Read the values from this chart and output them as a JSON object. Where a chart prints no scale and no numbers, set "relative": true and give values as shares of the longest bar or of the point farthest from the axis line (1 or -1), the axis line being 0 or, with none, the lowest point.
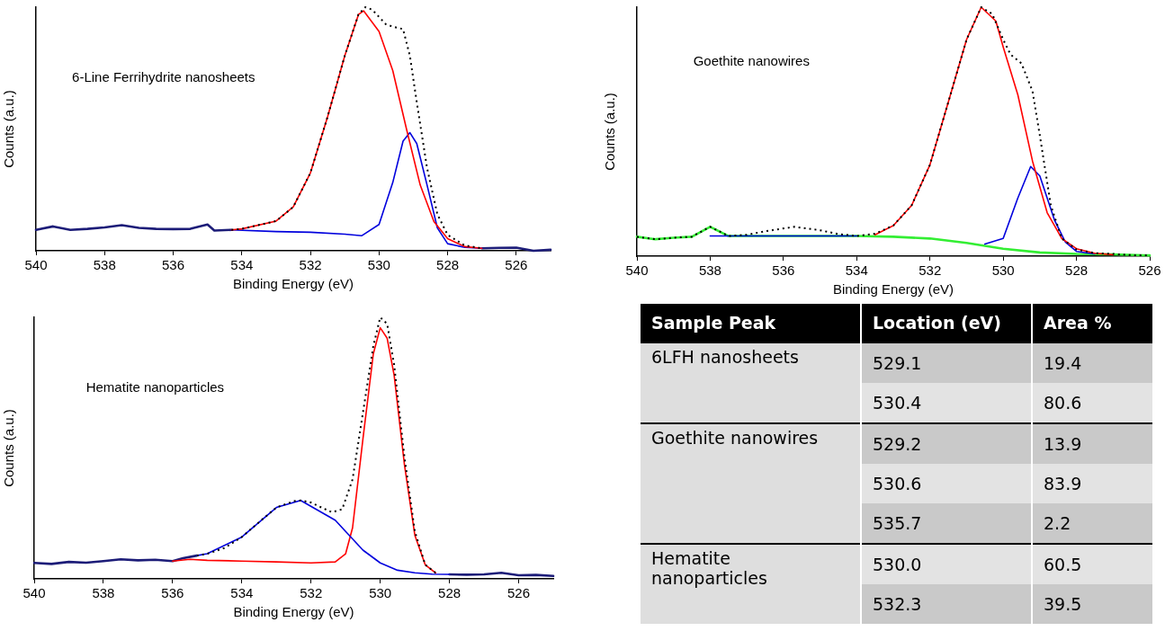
{
  "chart_data": [
    {
      "type": "line",
      "title": "6-Line Ferrihydrite nanosheets",
      "xlabel": "Binding Energy (eV)",
      "ylabel": "Counts (a.u.)",
      "relative": true,
      "xlim": [
        540,
        525
      ],
      "xticks": [
        540,
        538,
        536,
        534,
        532,
        530,
        528,
        526
      ],
      "tick_labels": "x",
      "grid": false,
      "legend": false,
      "marker": "none",
      "series": [
        {
          "color": "#1c1c78",
          "line_style": "solid",
          "x": [
            540,
            539.5,
            539,
            538.5,
            538,
            537.5,
            537,
            536.5,
            536,
            535.5,
            535,
            534.8,
            534.3,
            null,
            527,
            526.5,
            526,
            525.5,
            525
          ],
          "values": [
            0.086,
            0.1,
            0.086,
            0.09,
            0.096,
            0.105,
            0.094,
            0.09,
            0.089,
            0.09,
            0.108,
            0.083,
            0.086,
            null,
            0.01,
            0.012,
            0.013,
            0.0,
            0.004
          ]
        },
        {
          "color": "#0000dd",
          "line_style": "solid",
          "x": [
            534.3,
            533,
            532,
            531,
            530.5,
            530,
            529.6,
            529.3,
            529.1,
            528.9,
            528.6,
            528.3,
            528,
            527.5,
            527
          ],
          "values": [
            0.086,
            0.079,
            0.076,
            0.068,
            0.062,
            0.108,
            0.28,
            0.45,
            0.485,
            0.44,
            0.27,
            0.094,
            0.029,
            0.014,
            0.01
          ]
        },
        {
          "color": "#ff0000",
          "line_style": "solid",
          "x": [
            534.3,
            534,
            533,
            532.5,
            532,
            531.5,
            531,
            530.6,
            530.45,
            530,
            529.6,
            529.2,
            528.8,
            528.4,
            528,
            527.5,
            527
          ],
          "values": [
            0.086,
            0.09,
            0.122,
            0.18,
            0.32,
            0.55,
            0.8,
            0.97,
            0.985,
            0.9,
            0.74,
            0.5,
            0.27,
            0.12,
            0.05,
            0.017,
            0.01
          ]
        },
        {
          "color": "#000000",
          "line_style": "dotted",
          "x": [
            534.3,
            534,
            533,
            532.5,
            532,
            531.5,
            531,
            530.6,
            530.4,
            530.2,
            530,
            529.8,
            529.6,
            529.3,
            529.1,
            528.9,
            528.6,
            528.3,
            528,
            527.5,
            527
          ],
          "values": [
            0.086,
            0.09,
            0.122,
            0.18,
            0.32,
            0.55,
            0.8,
            0.97,
            1.0,
            0.99,
            0.96,
            0.93,
            0.92,
            0.91,
            0.8,
            0.61,
            0.34,
            0.15,
            0.065,
            0.022,
            0.01
          ]
        }
      ]
    },
    {
      "type": "line",
      "title": "Goethite nanowires",
      "xlabel": "Binding Energy (eV)",
      "ylabel": "Counts (a.u.)",
      "relative": true,
      "xlim": [
        540,
        526
      ],
      "xticks": [
        540,
        538,
        536,
        534,
        532,
        530,
        528,
        526
      ],
      "tick_labels": "x",
      "grid": false,
      "legend": false,
      "marker": "none",
      "series": [
        {
          "color": "#33ee33",
          "line_style": "solid",
          "x": [
            540,
            539.5,
            539,
            538.5,
            538,
            537.5,
            536,
            534,
            533,
            532,
            531,
            530,
            529,
            528,
            527,
            526
          ],
          "values": [
            0.078,
            0.068,
            0.074,
            0.078,
            0.118,
            0.081,
            0.081,
            0.081,
            0.078,
            0.071,
            0.053,
            0.03,
            0.015,
            0.009,
            0.007,
            0.003
          ]
        },
        {
          "color": "#0000dd",
          "line_style": "solid",
          "x": [
            538,
            536,
            534,
            532,
            530.5,
            530,
            529.6,
            529.25,
            529,
            528.6,
            528.3,
            528,
            527.5
          ],
          "values": [
            0.081,
            0.081,
            0.081,
            null,
            0.049,
            0.071,
            0.234,
            0.36,
            0.322,
            0.145,
            0.056,
            0.019,
            0.009
          ]
        },
        {
          "color": "#ff0000",
          "line_style": "solid",
          "x": [
            533.5,
            533,
            532.5,
            532,
            531.5,
            531,
            530.6,
            530.2,
            530,
            529.6,
            529.2,
            528.8,
            528.4,
            528,
            527.5,
            527
          ],
          "values": [
            0.086,
            0.123,
            0.204,
            0.367,
            0.618,
            0.87,
            1.0,
            0.944,
            0.84,
            0.648,
            0.382,
            0.175,
            0.071,
            0.03,
            0.012,
            0.006
          ]
        },
        {
          "color": "#000000",
          "line_style": "dotted",
          "x": [
            540,
            539.5,
            539,
            538.5,
            538,
            537.5,
            537,
            536.5,
            535.7,
            535,
            534.5,
            534,
            533.5,
            533,
            532.5,
            532,
            531.5,
            531,
            530.6,
            530.3,
            530,
            529.8,
            529.5,
            529.2,
            529,
            528.7,
            528.4,
            528,
            527.5,
            527,
            526.5,
            526
          ],
          "values": [
            0.078,
            0.068,
            0.074,
            0.078,
            0.118,
            0.081,
            0.086,
            0.1,
            0.118,
            0.104,
            0.089,
            0.081,
            0.09,
            0.123,
            0.204,
            0.367,
            0.618,
            0.87,
            1.0,
            0.973,
            0.87,
            0.81,
            0.774,
            0.663,
            0.485,
            0.204,
            0.071,
            0.027,
            0.012,
            0.009,
            0.004,
            0.003
          ]
        }
      ]
    },
    {
      "type": "line",
      "title": "Hematite nanoparticles",
      "xlabel": "Binding Energy (eV)",
      "ylabel": "Counts (a.u.)",
      "relative": true,
      "xlim": [
        540,
        525
      ],
      "xticks": [
        540,
        538,
        536,
        534,
        532,
        530,
        528,
        526
      ],
      "tick_labels": "x",
      "grid": false,
      "legend": false,
      "marker": "none",
      "series": [
        {
          "color": "#1c1c78",
          "line_style": "solid",
          "x": [
            540,
            539.5,
            539,
            538.5,
            538,
            537.5,
            537,
            536.5,
            536,
            535.7,
            535.3,
            null,
            528,
            527.5,
            527,
            526.5,
            526,
            525.5,
            525
          ],
          "values": [
            0.061,
            0.057,
            0.065,
            0.062,
            0.068,
            0.075,
            0.071,
            0.073,
            0.068,
            0.079,
            0.089,
            null,
            0.017,
            0.016,
            0.017,
            0.023,
            0.014,
            0.015,
            0.011
          ]
        },
        {
          "color": "#ff0000",
          "line_style": "solid",
          "x": [
            536,
            535.5,
            535,
            534,
            533,
            532,
            531.3,
            531,
            530.8,
            530.5,
            530.2,
            530,
            529.8,
            529.6,
            529.3,
            529,
            528.7,
            528.4
          ],
          "values": [
            0.068,
            0.075,
            0.071,
            0.068,
            0.065,
            0.061,
            0.065,
            0.096,
            0.195,
            0.535,
            0.86,
            0.96,
            0.92,
            0.78,
            0.436,
            0.167,
            0.054,
            0.023
          ]
        },
        {
          "color": "#0000dd",
          "line_style": "solid",
          "x": [
            535.3,
            535,
            534,
            533,
            532.3,
            531.8,
            531.3,
            531,
            530.5,
            530,
            529.5,
            529,
            528.5,
            528
          ],
          "values": [
            0.089,
            0.096,
            0.16,
            0.273,
            0.3,
            0.262,
            0.224,
            0.181,
            0.11,
            0.061,
            0.033,
            0.023,
            0.018,
            0.017
          ]
        },
        {
          "color": "#000000",
          "line_style": "dotted",
          "x": [
            535.3,
            535,
            534.5,
            534,
            533.5,
            533,
            532.5,
            532.3,
            532,
            531.7,
            531.4,
            531.1,
            530.8,
            530.5,
            530.2,
            530,
            529.8,
            529.6,
            529.3,
            529,
            528.7,
            528.4
          ],
          "values": [
            0.089,
            0.096,
            0.118,
            0.16,
            0.217,
            0.273,
            0.297,
            0.3,
            0.292,
            0.273,
            0.255,
            0.266,
            0.38,
            0.635,
            0.89,
            1.0,
            0.975,
            0.82,
            0.465,
            0.181,
            0.054,
            0.023
          ]
        }
      ]
    },
    {
      "type": "other",
      "annotations": [
        "Sample Peak",
        "Location (eV)",
        "Area %",
        "6LFH nanosheets",
        "529.1",
        "19.4",
        "530.4",
        "80.6",
        "Goethite nanowires",
        "529.2",
        "13.9",
        "530.6",
        "83.9",
        "535.7",
        "2.2",
        "Hematite nanoparticles",
        "530.0",
        "60.5",
        "532.3",
        "39.5"
      ]
    }
  ]
}
